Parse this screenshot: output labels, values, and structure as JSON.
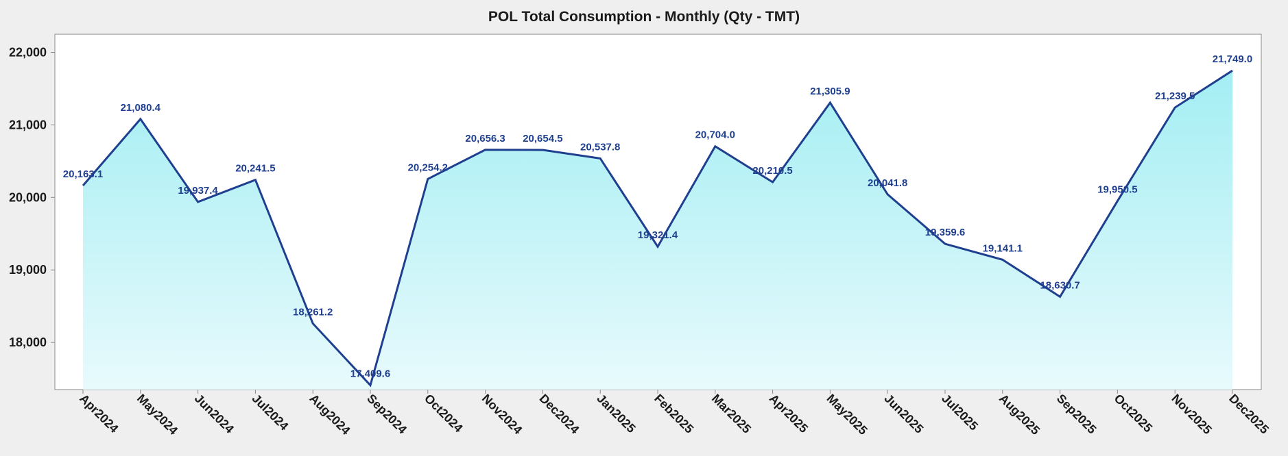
{
  "colors": {
    "background": "#efefef",
    "plot_background": "#ffffff",
    "line": "#1f3f8f",
    "fill_top": "#a3eef3",
    "fill_bottom": "#e8fafc",
    "label": "#1f3f8f",
    "axis_text": "#1a1a1a",
    "plot_border": "#8a8a8a"
  },
  "chart_data": {
    "type": "area",
    "title": "POL Total Consumption - Monthly (Qty - TMT)",
    "xlabel": "",
    "ylabel": "",
    "grid": false,
    "legend": "none",
    "ylim": [
      17350,
      22250
    ],
    "yticks": [
      18000,
      19000,
      20000,
      21000,
      22000
    ],
    "ytick_labels": [
      "18,000",
      "19,000",
      "20,000",
      "21,000",
      "22,000"
    ],
    "categories": [
      "Apr2024",
      "May2024",
      "Jun2024",
      "Jul2024",
      "Aug2024",
      "Sep2024",
      "Oct2024",
      "Nov2024",
      "Dec2024",
      "Jan2025",
      "Feb2025",
      "Mar2025",
      "Apr2025",
      "May2025",
      "Jun2025",
      "Jul2025",
      "Aug2025",
      "Sep2025",
      "Oct2025",
      "Nov2025",
      "Dec2025"
    ],
    "values": [
      20163.1,
      21080.4,
      19937.4,
      20241.5,
      18261.2,
      17409.6,
      20254.2,
      20656.3,
      20654.5,
      20537.8,
      19321.4,
      20704.0,
      20210.5,
      21305.9,
      20041.8,
      19359.6,
      19141.1,
      18630.7,
      19950.5,
      21239.5,
      21749.0
    ],
    "data_labels": [
      "20,163.1",
      "21,080.4",
      "19,937.4",
      "20,241.5",
      "18,261.2",
      "17,409.6",
      "20,254.2",
      "20,656.3",
      "20,654.5",
      "20,537.8",
      "19,321.4",
      "20,704.0",
      "20,210.5",
      "21,305.9",
      "20,041.8",
      "19,359.6",
      "19,141.1",
      "18,630.7",
      "19,950.5",
      "21,239.5",
      "21,749.0"
    ]
  }
}
